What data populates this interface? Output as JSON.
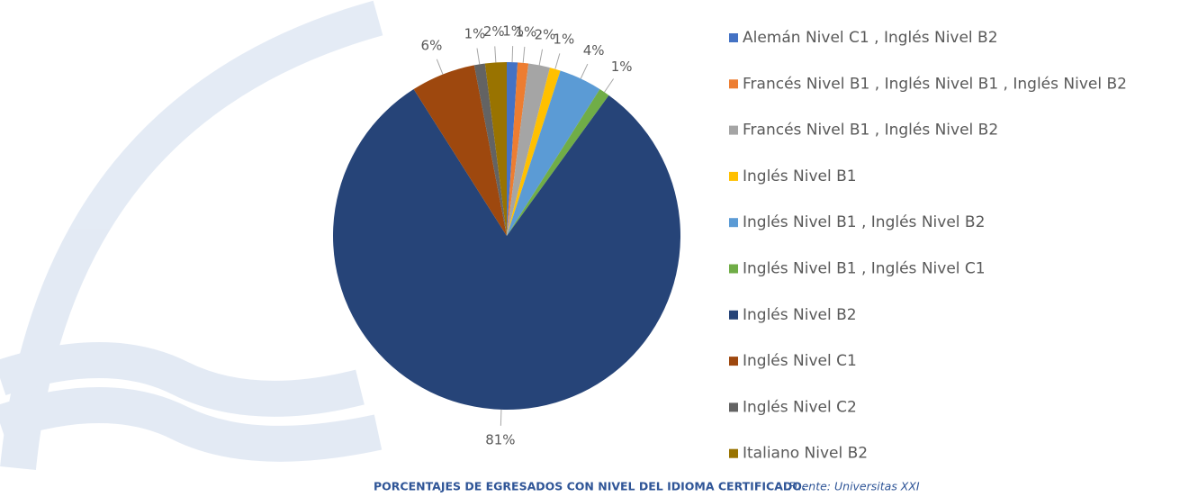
{
  "chart_data": {
    "type": "pie",
    "title": "PORCENTAJES DE EGRESADOS CON NIVEL DEL IDIOMA CERTIFICADO.",
    "source": "Fuente: Universitas XXI",
    "categories": [
      "Alemán Nivel C1 , Inglés Nivel B2",
      "Francés Nivel B1 , Inglés Nivel B1 , Inglés Nivel B2",
      "Francés Nivel B1 , Inglés Nivel B2",
      "Inglés Nivel B1",
      "Inglés Nivel B1 , Inglés Nivel B2",
      "Inglés Nivel B1 , Inglés Nivel C1",
      "Inglés Nivel B2",
      "Inglés Nivel C1",
      "Inglés Nivel C2",
      "Italiano Nivel B2"
    ],
    "values": [
      1,
      1,
      2,
      1,
      4,
      1,
      81,
      6,
      1,
      2
    ],
    "value_labels": [
      "1%",
      "1%",
      "2%",
      "1%",
      "4%",
      "1%",
      "81%",
      "6%",
      "1%",
      "2%"
    ],
    "colors": [
      "#4472c4",
      "#ed7d31",
      "#a5a5a5",
      "#ffc000",
      "#5b9bd5",
      "#70ad47",
      "#264478",
      "#9e480e",
      "#636363",
      "#997300"
    ],
    "legend": "right"
  }
}
